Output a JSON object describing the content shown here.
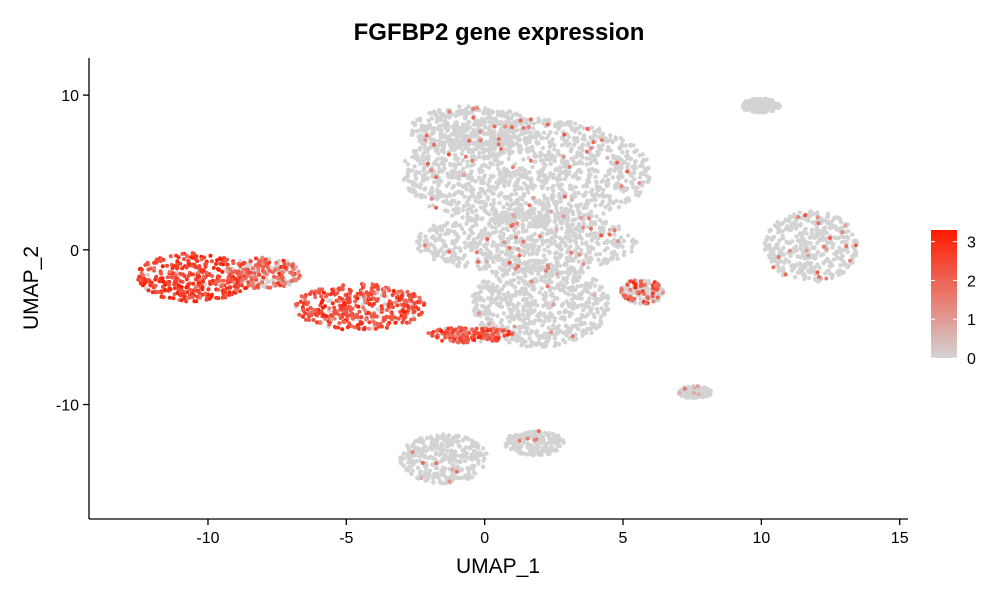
{
  "chart_data": {
    "type": "scatter",
    "title": "FGFBP2 gene expression",
    "xlabel": "UMAP_1",
    "ylabel": "UMAP_2",
    "xlim": [
      -14.3,
      15.3
    ],
    "ylim": [
      -17.4,
      12.4
    ],
    "xticks": [
      -10,
      -5,
      0,
      5,
      10,
      15
    ],
    "xtick_labels": [
      "-10",
      "-5",
      "0",
      "5",
      "10",
      "15"
    ],
    "yticks": [
      -10,
      0,
      10
    ],
    "ytick_labels": [
      "-10",
      "0",
      "10"
    ],
    "grid": false,
    "legend": {
      "placement": "right",
      "type": "colorbar",
      "min": 0,
      "max": 3.3,
      "ticks": [
        0,
        1,
        2,
        3
      ],
      "tick_labels": [
        "0",
        "1",
        "2",
        "3"
      ],
      "low_color": "#d3d3d3",
      "high_color": "#ff1a00"
    },
    "clusters": [
      {
        "name": "upper central mass",
        "cx": 1.5,
        "cy": 5.0,
        "rx": 4.5,
        "ry": 3.5,
        "expr_fraction": 0.03,
        "expr_mean": 1.5
      },
      {
        "name": "top central lobe",
        "cx": -0.5,
        "cy": 7.8,
        "rx": 2.2,
        "ry": 1.5,
        "expr_fraction": 0.03,
        "expr_mean": 1.5
      },
      {
        "name": "central band",
        "cx": 1.5,
        "cy": 0.5,
        "rx": 4.0,
        "ry": 2.0,
        "expr_fraction": 0.04,
        "expr_mean": 1.5
      },
      {
        "name": "lower central region",
        "cx": 2.0,
        "cy": -3.5,
        "rx": 2.5,
        "ry": 2.8,
        "expr_fraction": 0.02,
        "expr_mean": 1.3
      },
      {
        "name": "left high-expression cluster",
        "cx": -10.5,
        "cy": -1.8,
        "rx": 2.1,
        "ry": 1.6,
        "expr_fraction": 0.95,
        "expr_mean": 2.6
      },
      {
        "name": "left cluster tail",
        "cx": -8.0,
        "cy": -1.5,
        "rx": 1.4,
        "ry": 1.0,
        "expr_fraction": 0.55,
        "expr_mean": 2.0
      },
      {
        "name": "mid-left high-expression cluster",
        "cx": -4.5,
        "cy": -3.7,
        "rx": 2.4,
        "ry": 1.5,
        "expr_fraction": 0.9,
        "expr_mean": 2.4
      },
      {
        "name": "lower expressed band",
        "cx": -0.5,
        "cy": -5.5,
        "rx": 1.6,
        "ry": 0.5,
        "expr_fraction": 0.85,
        "expr_mean": 2.3
      },
      {
        "name": "upper right small cluster",
        "cx": 10.0,
        "cy": 9.3,
        "rx": 0.7,
        "ry": 0.5,
        "expr_fraction": 0.01,
        "expr_mean": 1.0
      },
      {
        "name": "right cluster",
        "cx": 11.8,
        "cy": 0.2,
        "rx": 1.7,
        "ry": 2.3,
        "expr_fraction": 0.04,
        "expr_mean": 1.6
      },
      {
        "name": "small mid-right cluster",
        "cx": 5.7,
        "cy": -2.7,
        "rx": 0.8,
        "ry": 0.8,
        "expr_fraction": 0.3,
        "expr_mean": 2.0
      },
      {
        "name": "small lower-right cluster",
        "cx": 7.6,
        "cy": -9.2,
        "rx": 0.6,
        "ry": 0.4,
        "expr_fraction": 0.02,
        "expr_mean": 1.0
      },
      {
        "name": "bottom cluster",
        "cx": -1.5,
        "cy": -13.5,
        "rx": 1.6,
        "ry": 1.6,
        "expr_fraction": 0.02,
        "expr_mean": 1.3
      },
      {
        "name": "bottom right arm",
        "cx": 1.8,
        "cy": -12.5,
        "rx": 1.1,
        "ry": 0.8,
        "expr_fraction": 0.05,
        "expr_mean": 1.8
      }
    ]
  }
}
